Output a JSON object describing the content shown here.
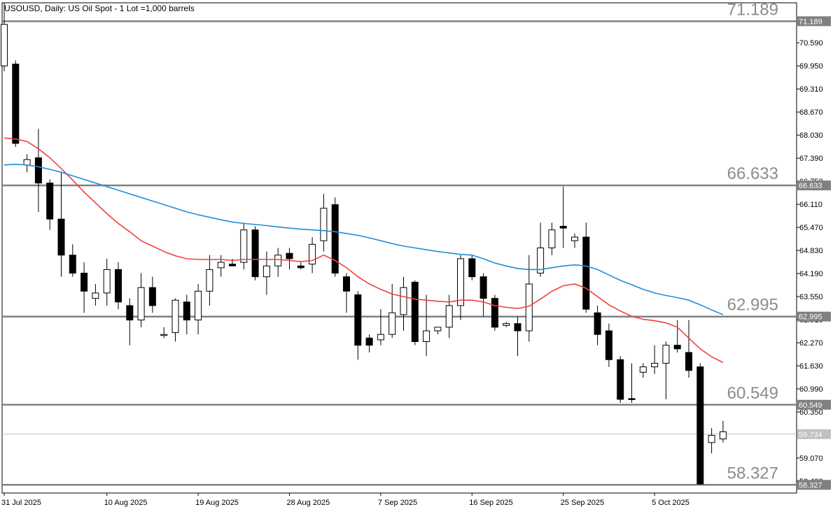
{
  "header": {
    "title": "USOUSD, Daily:  US Oil Spot - 1 Lot =1,000 barrels"
  },
  "colors": {
    "level_line": "#808080",
    "bid_line": "#c0c0c0",
    "ma_fast": "#f04040",
    "ma_slow": "#1e8fd8",
    "candle_bull_fill": "#ffffff",
    "candle_bear_fill": "#000000",
    "level_label": "#8c8c8c"
  },
  "chart_data": {
    "type": "candlestick",
    "symbol": "USOUSD",
    "timeframe": "Daily",
    "ylim": [
      58.1,
      71.7
    ],
    "y_ticks": [
      "70.590",
      "69.950",
      "69.310",
      "68.670",
      "68.030",
      "67.390",
      "66.750",
      "66.110",
      "65.470",
      "64.830",
      "64.190",
      "63.550",
      "62.910",
      "62.270",
      "61.630",
      "60.990",
      "60.350",
      "59.070",
      "58.430"
    ],
    "x_labels": [
      {
        "bar": 0,
        "label": "31 Jul 2025"
      },
      {
        "bar": 9,
        "label": "10 Aug 2025"
      },
      {
        "bar": 17,
        "label": "19 Aug 2025"
      },
      {
        "bar": 25,
        "label": "28 Aug 2025"
      },
      {
        "bar": 33,
        "label": "7 Sep 2025"
      },
      {
        "bar": 41,
        "label": "16 Sep 2025"
      },
      {
        "bar": 49,
        "label": "25 Sep 2025"
      },
      {
        "bar": 57,
        "label": "5 Oct 2025"
      }
    ],
    "levels": [
      {
        "value": 71.189,
        "label": "71.189"
      },
      {
        "value": 66.633,
        "label": "66.633"
      },
      {
        "value": 62.995,
        "label": "62.995"
      },
      {
        "value": 60.549,
        "label": "60.549"
      },
      {
        "value": 58.327,
        "label": "58.327"
      }
    ],
    "bid": {
      "value": 59.734,
      "label": "59.734"
    },
    "candles": [
      {
        "o": 69.95,
        "h": 71.7,
        "l": 69.8,
        "c": 71.1
      },
      {
        "o": 70.0,
        "h": 70.1,
        "l": 67.7,
        "c": 67.8
      },
      {
        "o": 67.2,
        "h": 67.5,
        "l": 67.0,
        "c": 67.35
      },
      {
        "o": 67.4,
        "h": 68.2,
        "l": 65.9,
        "c": 66.7
      },
      {
        "o": 66.7,
        "h": 66.8,
        "l": 65.4,
        "c": 65.7
      },
      {
        "o": 65.7,
        "h": 67.0,
        "l": 64.1,
        "c": 64.7
      },
      {
        "o": 64.7,
        "h": 65.0,
        "l": 64.1,
        "c": 64.2
      },
      {
        "o": 64.2,
        "h": 64.5,
        "l": 63.1,
        "c": 63.7
      },
      {
        "o": 63.5,
        "h": 63.9,
        "l": 63.3,
        "c": 63.65
      },
      {
        "o": 63.65,
        "h": 64.6,
        "l": 63.3,
        "c": 64.3
      },
      {
        "o": 64.3,
        "h": 64.5,
        "l": 63.2,
        "c": 63.4
      },
      {
        "o": 63.3,
        "h": 63.5,
        "l": 62.2,
        "c": 62.9
      },
      {
        "o": 62.9,
        "h": 64.2,
        "l": 62.7,
        "c": 63.8
      },
      {
        "o": 63.8,
        "h": 64.1,
        "l": 63.1,
        "c": 63.3
      },
      {
        "o": 62.5,
        "h": 62.7,
        "l": 62.4,
        "c": 62.5
      },
      {
        "o": 62.55,
        "h": 63.5,
        "l": 62.3,
        "c": 63.45
      },
      {
        "o": 63.4,
        "h": 63.6,
        "l": 62.5,
        "c": 62.9
      },
      {
        "o": 62.9,
        "h": 63.9,
        "l": 62.5,
        "c": 63.7
      },
      {
        "o": 63.7,
        "h": 64.7,
        "l": 63.3,
        "c": 64.3
      },
      {
        "o": 64.35,
        "h": 64.7,
        "l": 64.1,
        "c": 64.5
      },
      {
        "o": 64.45,
        "h": 64.6,
        "l": 64.4,
        "c": 64.4
      },
      {
        "o": 64.5,
        "h": 65.6,
        "l": 64.3,
        "c": 65.4
      },
      {
        "o": 65.4,
        "h": 65.5,
        "l": 64.0,
        "c": 64.1
      },
      {
        "o": 64.1,
        "h": 64.8,
        "l": 63.6,
        "c": 64.4
      },
      {
        "o": 64.4,
        "h": 64.9,
        "l": 64.1,
        "c": 64.7
      },
      {
        "o": 64.75,
        "h": 64.9,
        "l": 64.3,
        "c": 64.6
      },
      {
        "o": 64.4,
        "h": 64.5,
        "l": 64.3,
        "c": 64.35
      },
      {
        "o": 64.45,
        "h": 65.2,
        "l": 64.2,
        "c": 65.0
      },
      {
        "o": 65.1,
        "h": 66.4,
        "l": 64.8,
        "c": 66.0
      },
      {
        "o": 66.1,
        "h": 66.3,
        "l": 64.1,
        "c": 64.2
      },
      {
        "o": 64.1,
        "h": 64.2,
        "l": 63.1,
        "c": 63.7
      },
      {
        "o": 63.6,
        "h": 63.7,
        "l": 61.8,
        "c": 62.2
      },
      {
        "o": 62.4,
        "h": 62.5,
        "l": 62.0,
        "c": 62.2
      },
      {
        "o": 62.35,
        "h": 63.2,
        "l": 62.2,
        "c": 62.5
      },
      {
        "o": 62.5,
        "h": 63.9,
        "l": 62.4,
        "c": 63.1
      },
      {
        "o": 63.05,
        "h": 64.1,
        "l": 62.6,
        "c": 63.8
      },
      {
        "o": 63.95,
        "h": 64.0,
        "l": 62.2,
        "c": 62.3
      },
      {
        "o": 62.3,
        "h": 63.6,
        "l": 61.9,
        "c": 62.6
      },
      {
        "o": 62.6,
        "h": 62.7,
        "l": 62.5,
        "c": 62.7
      },
      {
        "o": 62.7,
        "h": 63.6,
        "l": 62.4,
        "c": 63.3
      },
      {
        "o": 63.3,
        "h": 64.7,
        "l": 62.9,
        "c": 64.6
      },
      {
        "o": 64.6,
        "h": 64.7,
        "l": 64.0,
        "c": 64.1
      },
      {
        "o": 64.1,
        "h": 64.2,
        "l": 63.0,
        "c": 63.5
      },
      {
        "o": 63.5,
        "h": 63.6,
        "l": 62.6,
        "c": 62.7
      },
      {
        "o": 62.75,
        "h": 62.85,
        "l": 62.7,
        "c": 62.8
      },
      {
        "o": 62.8,
        "h": 63.0,
        "l": 61.9,
        "c": 62.6
      },
      {
        "o": 62.6,
        "h": 64.7,
        "l": 62.3,
        "c": 63.9
      },
      {
        "o": 64.2,
        "h": 65.6,
        "l": 64.1,
        "c": 64.9
      },
      {
        "o": 64.9,
        "h": 65.6,
        "l": 64.7,
        "c": 65.4
      },
      {
        "o": 65.5,
        "h": 66.6,
        "l": 64.9,
        "c": 65.45
      },
      {
        "o": 65.1,
        "h": 65.3,
        "l": 64.9,
        "c": 65.2
      },
      {
        "o": 65.2,
        "h": 65.6,
        "l": 63.1,
        "c": 63.2
      },
      {
        "o": 63.1,
        "h": 63.3,
        "l": 62.2,
        "c": 62.5
      },
      {
        "o": 62.6,
        "h": 62.8,
        "l": 61.6,
        "c": 61.8
      },
      {
        "o": 61.8,
        "h": 61.9,
        "l": 60.6,
        "c": 60.7
      },
      {
        "o": 60.72,
        "h": 61.7,
        "l": 60.6,
        "c": 60.7
      },
      {
        "o": 61.45,
        "h": 61.7,
        "l": 61.3,
        "c": 61.6
      },
      {
        "o": 61.6,
        "h": 62.2,
        "l": 61.4,
        "c": 61.7
      },
      {
        "o": 61.7,
        "h": 62.3,
        "l": 60.7,
        "c": 62.2
      },
      {
        "o": 62.2,
        "h": 62.9,
        "l": 62.0,
        "c": 62.1
      },
      {
        "o": 62.0,
        "h": 62.9,
        "l": 61.3,
        "c": 61.5
      },
      {
        "o": 61.6,
        "h": 61.7,
        "l": 58.33,
        "c": 58.35
      },
      {
        "o": 59.5,
        "h": 59.9,
        "l": 59.2,
        "c": 59.7
      },
      {
        "o": 59.6,
        "h": 60.1,
        "l": 59.5,
        "c": 59.8
      }
    ],
    "series": [
      {
        "name": "",
        "color": "#f04040",
        "start": 0,
        "values": [
          67.95,
          67.92,
          67.85,
          67.65,
          67.4,
          67.1,
          66.78,
          66.45,
          66.15,
          65.85,
          65.58,
          65.35,
          65.1,
          64.95,
          64.8,
          64.68,
          64.6,
          64.58,
          64.58,
          64.58,
          64.55,
          64.58,
          64.58,
          64.58,
          64.58,
          64.55,
          64.52,
          64.55,
          64.7,
          64.55,
          64.35,
          64.1,
          63.9,
          63.75,
          63.62,
          63.55,
          63.48,
          63.45,
          63.42,
          63.4,
          63.45,
          63.45,
          63.4,
          63.3,
          63.25,
          63.22,
          63.28,
          63.48,
          63.7,
          63.85,
          63.9,
          63.78,
          63.55,
          63.32,
          63.15,
          63.0,
          62.92,
          62.88,
          62.82,
          62.7,
          62.4,
          62.1,
          61.88,
          61.72
        ]
      },
      {
        "name": "",
        "color": "#1e8fd8",
        "start": 0,
        "values": [
          67.2,
          67.22,
          67.2,
          67.15,
          67.08,
          67.0,
          66.9,
          66.8,
          66.7,
          66.6,
          66.5,
          66.4,
          66.3,
          66.2,
          66.1,
          66.0,
          65.9,
          65.82,
          65.75,
          65.68,
          65.62,
          65.58,
          65.55,
          65.52,
          65.48,
          65.45,
          65.42,
          65.4,
          65.38,
          65.35,
          65.3,
          65.25,
          65.18,
          65.1,
          65.02,
          64.95,
          64.9,
          64.85,
          64.8,
          64.76,
          64.72,
          64.7,
          64.6,
          64.48,
          64.4,
          64.33,
          64.3,
          64.3,
          64.35,
          64.4,
          64.43,
          64.4,
          64.3,
          64.15,
          64.0,
          63.88,
          63.75,
          63.65,
          63.58,
          63.52,
          63.45,
          63.32,
          63.18,
          63.05
        ]
      }
    ]
  }
}
